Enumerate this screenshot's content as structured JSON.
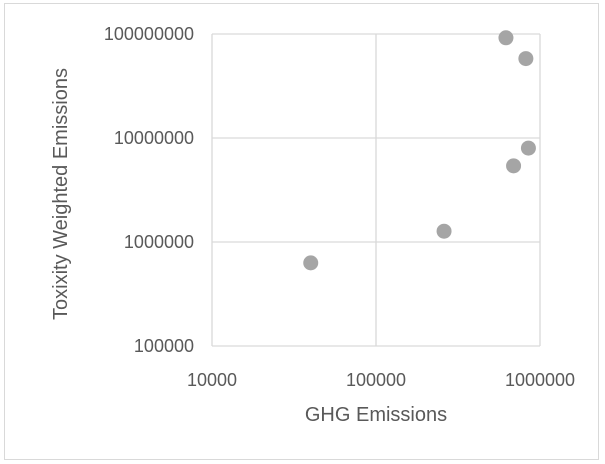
{
  "chart_data": {
    "type": "scatter",
    "title": "",
    "xlabel": "GHG Emissions",
    "ylabel": "Toxixity Weighted Emissions",
    "x_scale": "log",
    "y_scale": "log",
    "xlim": [
      10000,
      1000000
    ],
    "ylim": [
      100000,
      100000000
    ],
    "x_ticks": [
      "10000",
      "100000",
      "1000000"
    ],
    "y_ticks": [
      "100000000",
      "10000000",
      "1000000",
      "100000"
    ],
    "grid": true,
    "legend": "none",
    "marker_color": "#a5a5a5",
    "grid_color": "#d9d9d9",
    "points": [
      {
        "x": 40000,
        "y": 630000
      },
      {
        "x": 260000,
        "y": 1270000
      },
      {
        "x": 620000,
        "y": 92000000
      },
      {
        "x": 820000,
        "y": 58000000
      },
      {
        "x": 850000,
        "y": 8000000
      },
      {
        "x": 690000,
        "y": 5400000
      }
    ]
  }
}
